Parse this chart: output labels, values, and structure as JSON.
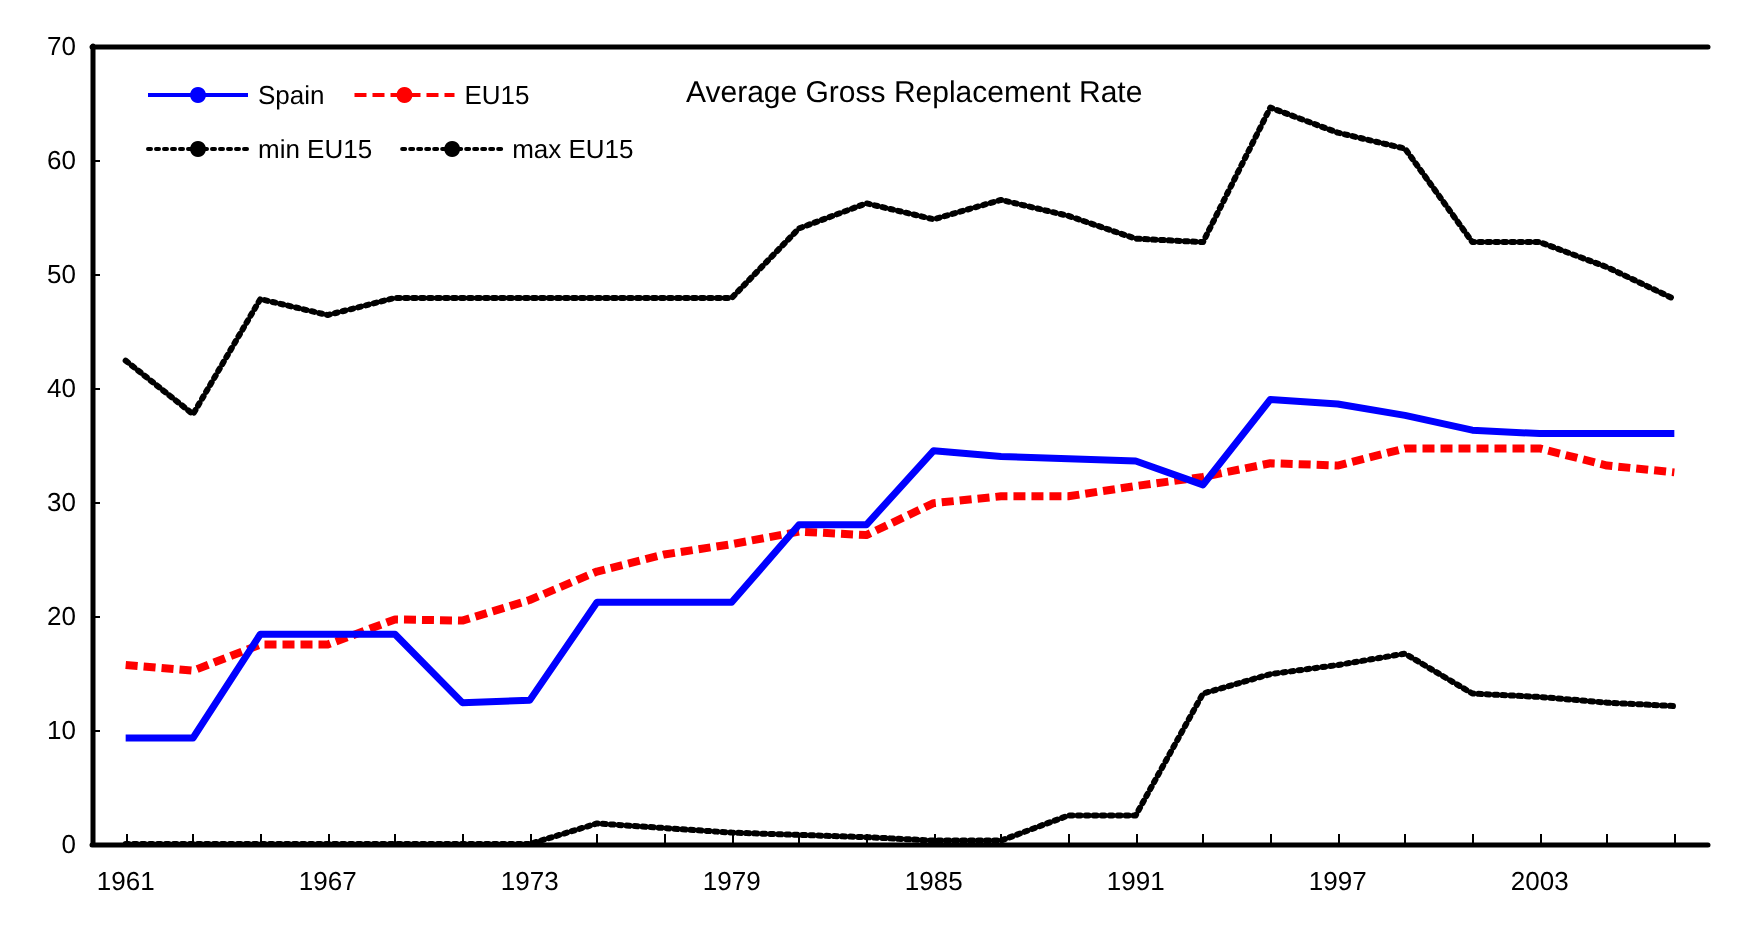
{
  "chart_data": {
    "type": "line",
    "title": "Average Gross Replacement Rate",
    "x": [
      1961,
      1963,
      1965,
      1967,
      1969,
      1971,
      1973,
      1975,
      1977,
      1979,
      1981,
      1983,
      1985,
      1987,
      1989,
      1991,
      1993,
      1995,
      1997,
      1999,
      2001,
      2003,
      2005,
      2007
    ],
    "xlim": [
      1960,
      2008
    ],
    "xticks": [
      1961,
      {
        "value": 1963,
        "label": null
      },
      {
        "value": 1965,
        "label": null
      },
      1967,
      {
        "value": 1969,
        "label": null
      },
      {
        "value": 1971,
        "label": null
      },
      1973,
      {
        "value": 1975,
        "label": null
      },
      {
        "value": 1977,
        "label": null
      },
      1979,
      {
        "value": 1981,
        "label": null
      },
      {
        "value": 1983,
        "label": null
      },
      1985,
      {
        "value": 1987,
        "label": null
      },
      {
        "value": 1989,
        "label": null
      },
      1991,
      {
        "value": 1993,
        "label": null
      },
      {
        "value": 1995,
        "label": null
      },
      1997,
      {
        "value": 1999,
        "label": null
      },
      {
        "value": 2001,
        "label": null
      },
      2003,
      {
        "value": 2005,
        "label": null
      },
      {
        "value": 2007,
        "label": null
      }
    ],
    "ylim": [
      0,
      70
    ],
    "yticks": [
      0,
      10,
      20,
      30,
      40,
      50,
      60,
      70
    ],
    "grid": false,
    "legend": "top left",
    "marker": "none",
    "series": [
      {
        "name": "Spain",
        "color": "#0000ff",
        "line_style": "solid",
        "values": [
          9.3,
          9.3,
          18.4,
          18.4,
          18.4,
          12.4,
          12.6,
          21.2,
          21.2,
          21.2,
          28.0,
          28.0,
          34.5,
          34.0,
          33.8,
          33.6,
          31.5,
          39.0,
          38.6,
          37.6,
          36.3,
          36.0,
          36.0,
          36.0
        ]
      },
      {
        "name": "EU15",
        "color": "#ff0000",
        "line_style": "dashed",
        "values": [
          15.7,
          15.2,
          17.5,
          17.5,
          19.7,
          19.6,
          21.4,
          23.9,
          25.4,
          26.3,
          27.4,
          27.1,
          29.9,
          30.5,
          30.5,
          31.4,
          32.2,
          33.4,
          33.2,
          34.7,
          34.7,
          34.7,
          33.2,
          32.6
        ]
      },
      {
        "name": "min EU15",
        "color": "#000000",
        "line_style": "dotted",
        "values": [
          0,
          0,
          0,
          0,
          0,
          0,
          0,
          1.8,
          1.4,
          1.0,
          0.8,
          0.6,
          0.3,
          0.3,
          2.5,
          2.5,
          13.2,
          14.9,
          15.7,
          16.7,
          13.2,
          12.9,
          12.4,
          12.1
        ]
      },
      {
        "name": "max EU15",
        "color": "#000000",
        "line_style": "dotted",
        "values": [
          42.4,
          37.7,
          47.8,
          46.4,
          47.9,
          47.9,
          47.9,
          47.9,
          47.9,
          47.9,
          54.0,
          56.2,
          54.8,
          56.5,
          55.1,
          53.1,
          52.8,
          64.6,
          62.4,
          61.0,
          52.8,
          52.8,
          50.6,
          47.8
        ]
      }
    ]
  }
}
